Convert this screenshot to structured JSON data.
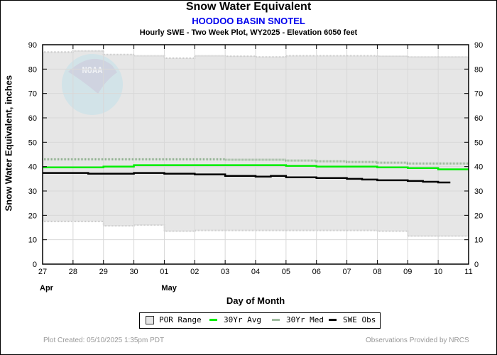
{
  "chart_data": {
    "type": "line",
    "title": "Snow Water Equivalent",
    "subtitle": "HOODOO BASIN SNOTEL",
    "subtitle2": "Hourly SWE - Two Week Plot, WY2025 -  Elevation 6050 feet",
    "xlabel": "Day of Month",
    "ylabel": "Snow Water Equivalent, inches",
    "ylim": [
      0,
      90
    ],
    "xlim": [
      0,
      14
    ],
    "yticks": [
      "0",
      "10",
      "20",
      "30",
      "40",
      "50",
      "60",
      "70",
      "80",
      "90"
    ],
    "xticks": [
      "27",
      "28",
      "29",
      "30",
      "01",
      "02",
      "03",
      "04",
      "05",
      "06",
      "07",
      "08",
      "09",
      "10",
      "11"
    ],
    "month_labels": [
      {
        "label": "Apr",
        "day_index": 0
      },
      {
        "label": "May",
        "day_index": 4
      }
    ],
    "grid": true,
    "legend_position": "bottom",
    "series": [
      {
        "name": "POR Range",
        "type": "range",
        "color": "#e6e6e6",
        "x": [
          0,
          1,
          2,
          3,
          4,
          5,
          6,
          7,
          8,
          9,
          10,
          11,
          12,
          13,
          14
        ],
        "upper": [
          87,
          87.5,
          86,
          85.5,
          84.5,
          85.5,
          85.3,
          85,
          85.5,
          85.5,
          85.5,
          85.3,
          85,
          85,
          85
        ],
        "lower": [
          17.5,
          17.5,
          15.7,
          16,
          13.5,
          13.8,
          13.8,
          13.8,
          13.8,
          13.8,
          13.8,
          13.5,
          11.5,
          11.5,
          11.5
        ]
      },
      {
        "name": "30Yr Avg",
        "color": "#00ee00",
        "x": [
          0,
          1,
          2,
          3,
          4,
          5,
          6,
          7,
          8,
          9,
          10,
          11,
          12,
          13,
          14
        ],
        "values": [
          39.7,
          39.7,
          40,
          40.6,
          40.6,
          40.6,
          40.6,
          40.6,
          40.3,
          40,
          40,
          39.7,
          39.4,
          38.9,
          38.9
        ]
      },
      {
        "name": "30Yr Med",
        "color": "#8fb08f",
        "x": [
          0,
          1,
          2,
          3,
          4,
          5,
          6,
          7,
          8,
          9,
          10,
          11,
          12,
          13,
          14
        ],
        "values": [
          43,
          43,
          43,
          43,
          43,
          43,
          42.8,
          42.8,
          42.5,
          42.2,
          41.9,
          41.6,
          41.3,
          41.3,
          41.3
        ]
      },
      {
        "name": "SWE Obs",
        "color": "#000000",
        "x": [
          0,
          0.5,
          1,
          1.5,
          2,
          2.5,
          3,
          3.5,
          4,
          4.5,
          5,
          5.5,
          6,
          6.5,
          7,
          7.5,
          8,
          8.5,
          9,
          9.5,
          10,
          10.5,
          11,
          11.5,
          12,
          12.5,
          13,
          13.4
        ],
        "values": [
          37.4,
          37.4,
          37.4,
          37.1,
          37.1,
          37.1,
          37.4,
          37.4,
          37.1,
          37.1,
          36.8,
          36.8,
          36.2,
          36.2,
          35.9,
          36.2,
          35.6,
          35.6,
          35.3,
          35.3,
          35,
          34.7,
          34.4,
          34.4,
          34.1,
          33.8,
          33.5,
          33.2
        ]
      }
    ]
  },
  "legend": {
    "items": [
      {
        "label": "POR Range",
        "color": "#e6e6e6"
      },
      {
        "label": "30Yr Avg",
        "color": "#00ee00"
      },
      {
        "label": "30Yr Med",
        "color": "#a0bca0"
      },
      {
        "label": "SWE Obs",
        "color": "#000000"
      }
    ]
  },
  "footer": {
    "created": "Plot Created: 05/10/2025 1:35pm PDT",
    "provider": "Observations Provided by NRCS"
  },
  "watermark": {
    "text": "NOAA"
  }
}
